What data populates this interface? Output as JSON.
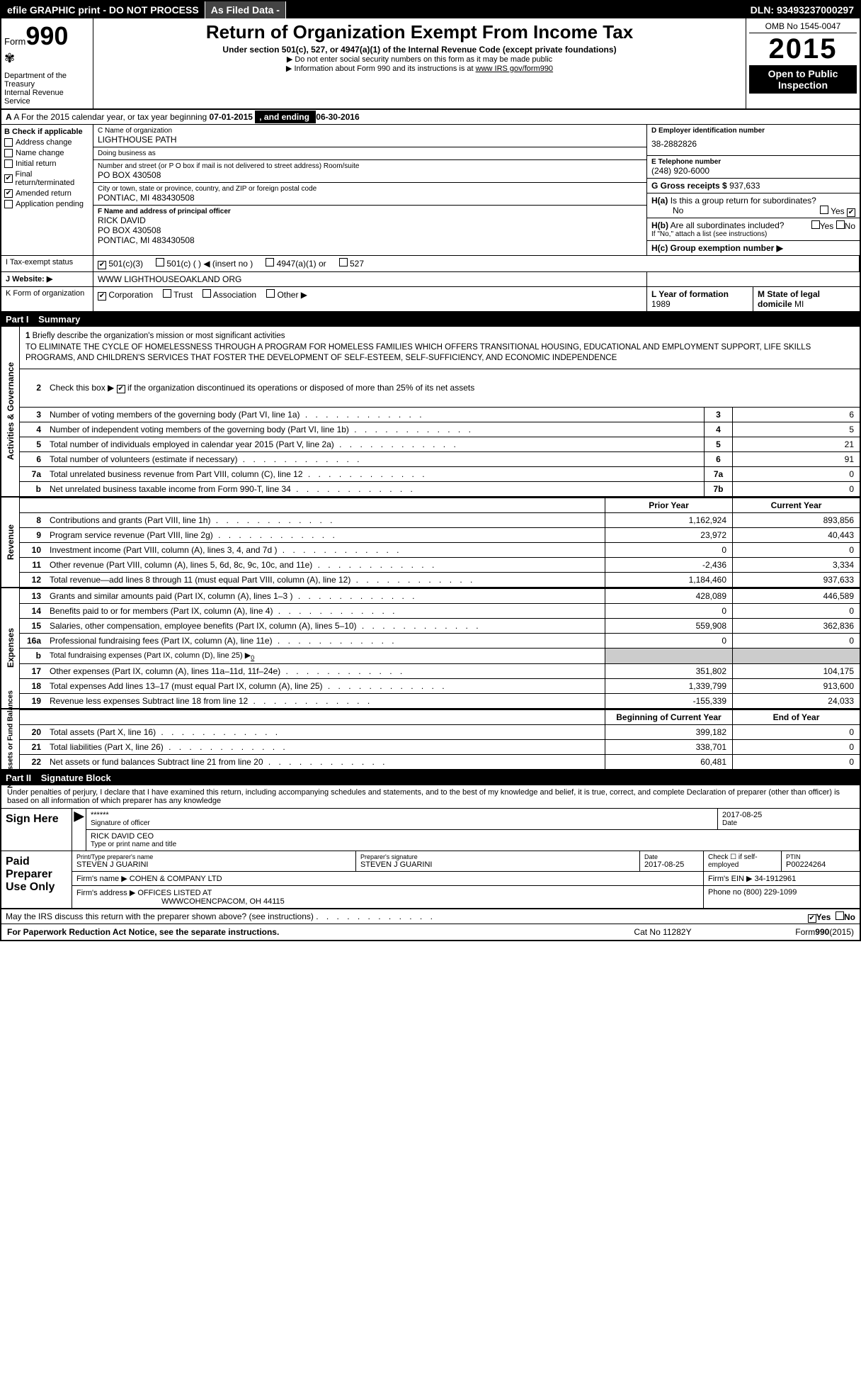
{
  "topbar": {
    "efile": "efile GRAPHIC print - DO NOT PROCESS",
    "asfiled": "As Filed Data -",
    "dln": "DLN: 93493237000297"
  },
  "header": {
    "form_label": "Form",
    "form_number": "990",
    "dept": "Department of the Treasury\nInternal Revenue Service",
    "title": "Return of Organization Exempt From Income Tax",
    "sub": "Under section 501(c), 527, or 4947(a)(1) of the Internal Revenue Code (except private foundations)",
    "note1": "▶ Do not enter social security numbers on this form as it may be made public",
    "note2_pre": "▶ Information about Form 990 and its instructions is at ",
    "note2_link": "www IRS gov/form990",
    "omb": "OMB No 1545-0047",
    "year": "2015",
    "openpub": "Open to Public Inspection"
  },
  "rowA": {
    "pre": "A  For the 2015 calendar year, or tax year beginning ",
    "begin": "07-01-2015",
    "mid": ", and ending ",
    "end": "06-30-2016"
  },
  "colB": {
    "title": "B  Check if applicable",
    "items": [
      "Address change",
      "Name change",
      "Initial return",
      "Final return/terminated",
      "Amended return",
      "Application pending"
    ],
    "checked": {
      "Final return/terminated": true,
      "Amended return": true
    }
  },
  "colC": {
    "c_lbl": "C Name of organization",
    "org": "LIGHTHOUSE PATH",
    "dba_lbl": "Doing business as",
    "dba": "",
    "addr_lbl": "Number and street (or P O  box if mail is not delivered to street address)  Room/suite",
    "addr": "PO BOX 430508",
    "city_lbl": "City or town, state or province, country, and ZIP or foreign postal code",
    "city": "PONTIAC, MI  483430508",
    "f_lbl": "F  Name and address of principal officer",
    "f_name": "RICK DAVID",
    "f_addr1": "PO BOX 430508",
    "f_addr2": "PONTIAC, MI  483430508"
  },
  "colRight": {
    "d_lbl": "D Employer identification number",
    "ein": "38-2882826",
    "e_lbl": "E Telephone number",
    "phone": "(248) 920-6000",
    "g_lbl": "G Gross receipts $",
    "gross": "937,633",
    "h_a": "H(a)  Is this a group return for subordinates?",
    "h_a_no": "No",
    "h_a_yes": "Yes",
    "h_a_yes_checked": true,
    "h_b": "H(b)  Are all subordinates included?",
    "h_b_note": "If \"No,\" attach a list (see instructions)",
    "h_c": "H(c)   Group exemption number ▶"
  },
  "rowI": {
    "lab": "I  Tax-exempt status",
    "opts": [
      "501(c)(3)",
      "501(c) (  ) ◀ (insert no )",
      "4947(a)(1) or",
      "527"
    ],
    "checked": 0
  },
  "rowJ": {
    "lab": "J  Website: ▶",
    "val": "WWW LIGHTHOUSEOAKLAND ORG"
  },
  "rowK": {
    "lab": "K Form of organization",
    "opts": [
      "Corporation",
      "Trust",
      "Association",
      "Other ▶"
    ],
    "checked": 0,
    "l_lbl": "L Year of formation",
    "l_val": "1989",
    "m_lbl": "M State of legal domicile",
    "m_val": "MI"
  },
  "part1": {
    "hdr": "Part I",
    "title": "Summary"
  },
  "brief": {
    "num": "1",
    "lbl": "Briefly describe the organization's mission or most significant activities",
    "text": "TO ELIMINATE THE CYCLE OF HOMELESSNESS THROUGH A PROGRAM FOR HOMELESS FAMILIES WHICH OFFERS TRANSITIONAL HOUSING, EDUCATIONAL AND EMPLOYMENT SUPPORT, LIFE SKILLS PROGRAMS, AND CHILDREN'S SERVICES THAT FOSTER THE DEVELOPMENT OF SELF-ESTEEM, SELF-SUFFICIENCY, AND ECONOMIC INDEPENDENCE"
  },
  "line2": {
    "num": "2",
    "text": "Check this box ▶ ☑ if the organization discontinued its operations or disposed of more than 25% of its net assets"
  },
  "gov_lines": [
    {
      "n": "3",
      "t": "Number of voting members of the governing body (Part VI, line 1a)",
      "bx": "3",
      "v": "6"
    },
    {
      "n": "4",
      "t": "Number of independent voting members of the governing body (Part VI, line 1b)",
      "bx": "4",
      "v": "5"
    },
    {
      "n": "5",
      "t": "Total number of individuals employed in calendar year 2015 (Part V, line 2a)",
      "bx": "5",
      "v": "21"
    },
    {
      "n": "6",
      "t": "Total number of volunteers (estimate if necessary)",
      "bx": "6",
      "v": "91"
    },
    {
      "n": "7a",
      "t": "Total unrelated business revenue from Part VIII, column (C), line 12",
      "bx": "7a",
      "v": "0"
    },
    {
      "n": "b",
      "t": "Net unrelated business taxable income from Form 990-T, line 34",
      "bx": "7b",
      "v": "0"
    }
  ],
  "colhdr": {
    "c1": "Prior Year",
    "c2": "Current Year"
  },
  "rev_lines": [
    {
      "n": "8",
      "t": "Contributions and grants (Part VIII, line 1h)",
      "v": "1,162,924",
      "v2": "893,856"
    },
    {
      "n": "9",
      "t": "Program service revenue (Part VIII, line 2g)",
      "v": "23,972",
      "v2": "40,443"
    },
    {
      "n": "10",
      "t": "Investment income (Part VIII, column (A), lines 3, 4, and 7d )",
      "v": "0",
      "v2": "0"
    },
    {
      "n": "11",
      "t": "Other revenue (Part VIII, column (A), lines 5, 6d, 8c, 9c, 10c, and 11e)",
      "v": "-2,436",
      "v2": "3,334"
    },
    {
      "n": "12",
      "t": "Total revenue—add lines 8 through 11 (must equal Part VIII, column (A), line 12)",
      "v": "1,184,460",
      "v2": "937,633"
    }
  ],
  "exp_lines": [
    {
      "n": "13",
      "t": "Grants and similar amounts paid (Part IX, column (A), lines 1–3 )",
      "v": "428,089",
      "v2": "446,589"
    },
    {
      "n": "14",
      "t": "Benefits paid to or for members (Part IX, column (A), line 4)",
      "v": "0",
      "v2": "0"
    },
    {
      "n": "15",
      "t": "Salaries, other compensation, employee benefits (Part IX, column (A), lines 5–10)",
      "v": "559,908",
      "v2": "362,836"
    },
    {
      "n": "16a",
      "t": "Professional fundraising fees (Part IX, column (A), line 11e)",
      "v": "0",
      "v2": "0"
    },
    {
      "n": "b",
      "t": "Total fundraising expenses (Part IX, column (D), line 25) ▶",
      "v": "",
      "v2": "",
      "sup0": true,
      "grey": true
    },
    {
      "n": "17",
      "t": "Other expenses (Part IX, column (A), lines 11a–11d, 11f–24e)",
      "v": "351,802",
      "v2": "104,175"
    },
    {
      "n": "18",
      "t": "Total expenses  Add lines 13–17 (must equal Part IX, column (A), line 25)",
      "v": "1,339,799",
      "v2": "913,600"
    },
    {
      "n": "19",
      "t": "Revenue less expenses  Subtract line 18 from line 12",
      "v": "-155,339",
      "v2": "24,033"
    }
  ],
  "net_hdr": {
    "c1": "Beginning of Current Year",
    "c2": "End of Year"
  },
  "net_lines": [
    {
      "n": "20",
      "t": "Total assets (Part X, line 16)",
      "v": "399,182",
      "v2": "0"
    },
    {
      "n": "21",
      "t": "Total liabilities (Part X, line 26)",
      "v": "338,701",
      "v2": "0"
    },
    {
      "n": "22",
      "t": "Net assets or fund balances  Subtract line 21 from line 20",
      "v": "60,481",
      "v2": "0"
    }
  ],
  "vtabs": {
    "gov": "Activities & Governance",
    "rev": "Revenue",
    "exp": "Expenses",
    "net": "Net Assets or Fund Balances"
  },
  "part2": {
    "hdr": "Part II",
    "title": "Signature Block"
  },
  "sig_text": "Under penalties of perjury, I declare that I have examined this return, including accompanying schedules and statements, and to the best of my knowledge and belief, it is true, correct, and complete  Declaration of preparer (other than officer) is based on all information of which preparer has any knowledge",
  "sign": {
    "lab": "Sign Here",
    "stars": "******",
    "sig_lbl": "Signature of officer",
    "date": "2017-08-25",
    "date_lbl": "Date",
    "name": "RICK DAVID CEO",
    "name_lbl": "Type or print name and title"
  },
  "prep": {
    "lab": "Paid Preparer Use Only",
    "row1": {
      "c1_lbl": "Print/Type preparer's name",
      "c1": "STEVEN J GUARINI",
      "c2_lbl": "Preparer's signature",
      "c2": "STEVEN J GUARINI",
      "c3_lbl": "Date",
      "c3": "2017-08-25",
      "c4_lbl": "Check ☐ if self-employed",
      "c5_lbl": "PTIN",
      "c5": "P00224264"
    },
    "row2": {
      "lbl": "Firm's name      ▶",
      "val": "COHEN & COMPANY LTD",
      "ein_lbl": "Firm's EIN ▶",
      "ein": "34-1912961"
    },
    "row3": {
      "lbl": "Firm's address ▶",
      "val": "OFFICES LISTED AT",
      "val2": "WWWCOHENCPACOM, OH  44115",
      "ph_lbl": "Phone no",
      "ph": "(800) 229-1099"
    }
  },
  "discuss": {
    "text": "May the IRS discuss this return with the preparer shown above? (see instructions)",
    "yes": "Yes",
    "no": "No",
    "yes_checked": true
  },
  "footer": {
    "l": "For Paperwork Reduction Act Notice, see the separate instructions.",
    "m": "Cat No 11282Y",
    "r": "Form 990 (2015)"
  }
}
